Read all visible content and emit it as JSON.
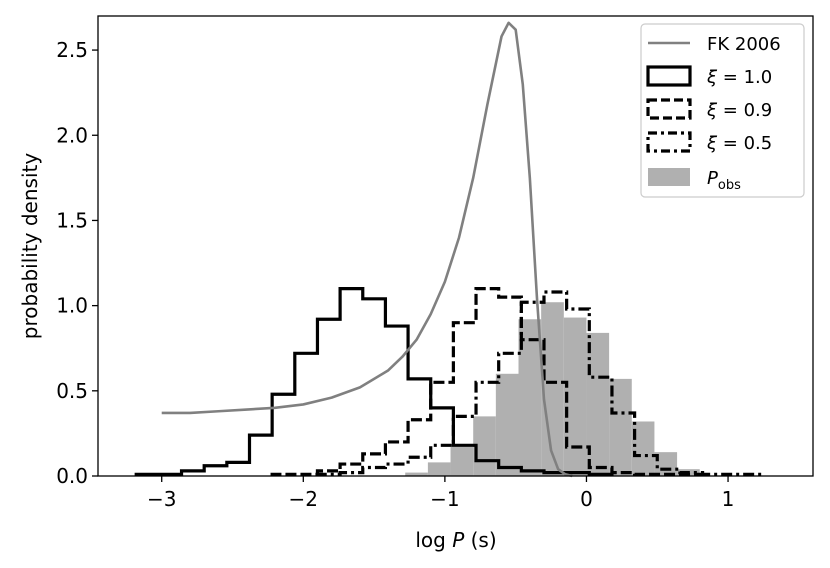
{
  "chart_data": {
    "type": "histogram",
    "title": "",
    "xlabel": "log P (s)",
    "ylabel": "probability density",
    "xlim": [
      -3.45,
      1.6
    ],
    "ylim": [
      0.0,
      2.7
    ],
    "xticks": [
      -3,
      -2,
      -1,
      0,
      1
    ],
    "xtick_labels": [
      "−3",
      "−2",
      "−1",
      "0",
      "1"
    ],
    "yticks": [
      0.0,
      0.5,
      1.0,
      1.5,
      2.0,
      2.5
    ],
    "ytick_labels": [
      "0.0",
      "0.5",
      "1.0",
      "1.5",
      "2.0",
      "2.5"
    ],
    "grid": false,
    "legend_position": "top-right",
    "legend": [
      {
        "label": "FK 2006"
      },
      {
        "label": "ξ = 1.0"
      },
      {
        "label": "ξ = 0.9"
      },
      {
        "label": "ξ = 0.5"
      },
      {
        "label": "P",
        "subscript": "obs"
      }
    ],
    "series": [
      {
        "name": "P_obs",
        "kind": "filled_histogram",
        "color": "#b0b0b0",
        "bin_edges": [
          -1.28,
          -1.12,
          -0.96,
          -0.8,
          -0.64,
          -0.48,
          -0.32,
          -0.16,
          0.0,
          0.16,
          0.32,
          0.48,
          0.64,
          0.8
        ],
        "values": [
          0.02,
          0.08,
          0.17,
          0.35,
          0.6,
          0.92,
          1.02,
          0.93,
          0.84,
          0.57,
          0.32,
          0.14,
          0.04
        ]
      },
      {
        "name": "ξ = 1.0",
        "kind": "step_histogram",
        "color": "#000000",
        "linestyle": "solid",
        "bin_edges": [
          -3.18,
          -2.86,
          -2.7,
          -2.54,
          -2.38,
          -2.22,
          -2.06,
          -1.9,
          -1.74,
          -1.58,
          -1.42,
          -1.26,
          -1.1,
          -0.94,
          -0.78,
          -0.62,
          -0.46,
          -0.3,
          -0.14,
          0.02,
          0.18
        ],
        "values": [
          0.01,
          0.03,
          0.06,
          0.08,
          0.24,
          0.48,
          0.72,
          0.92,
          1.1,
          1.04,
          0.88,
          0.57,
          0.4,
          0.18,
          0.09,
          0.05,
          0.03,
          0.02,
          0.02,
          0.01
        ]
      },
      {
        "name": "ξ = 0.9",
        "kind": "step_histogram",
        "color": "#000000",
        "linestyle": "dashed",
        "bin_edges": [
          -2.22,
          -1.9,
          -1.74,
          -1.58,
          -1.42,
          -1.26,
          -1.1,
          -0.94,
          -0.78,
          -0.62,
          -0.46,
          -0.3,
          -0.14,
          0.02,
          0.18,
          0.34,
          0.5,
          0.66,
          0.82
        ],
        "values": [
          0.01,
          0.03,
          0.07,
          0.13,
          0.2,
          0.33,
          0.55,
          0.9,
          1.1,
          1.05,
          0.8,
          0.55,
          0.17,
          0.05,
          0.02,
          0.01,
          0.01,
          0.01
        ]
      },
      {
        "name": "ξ = 0.5",
        "kind": "step_histogram",
        "color": "#000000",
        "linestyle": "dashdot",
        "bin_edges": [
          -1.9,
          -1.74,
          -1.58,
          -1.42,
          -1.26,
          -1.1,
          -0.94,
          -0.78,
          -0.62,
          -0.46,
          -0.3,
          -0.14,
          0.02,
          0.18,
          0.34,
          0.5,
          0.66,
          0.82,
          1.0,
          1.24
        ],
        "values": [
          0.01,
          0.02,
          0.05,
          0.07,
          0.11,
          0.18,
          0.35,
          0.55,
          0.72,
          1.02,
          1.08,
          0.98,
          0.58,
          0.37,
          0.12,
          0.04,
          0.02,
          0.01,
          0.01
        ]
      },
      {
        "name": "FK 2006",
        "kind": "line",
        "color": "#808080",
        "x": [
          -3.0,
          -2.8,
          -2.6,
          -2.4,
          -2.2,
          -2.0,
          -1.8,
          -1.6,
          -1.4,
          -1.3,
          -1.2,
          -1.1,
          -1.0,
          -0.9,
          -0.8,
          -0.7,
          -0.6,
          -0.55,
          -0.5,
          -0.45,
          -0.4,
          -0.35,
          -0.3,
          -0.25,
          -0.2,
          -0.15,
          -0.1
        ],
        "y": [
          0.37,
          0.37,
          0.38,
          0.39,
          0.4,
          0.42,
          0.46,
          0.52,
          0.62,
          0.7,
          0.8,
          0.95,
          1.14,
          1.4,
          1.75,
          2.18,
          2.58,
          2.66,
          2.62,
          2.3,
          1.75,
          1.05,
          0.45,
          0.15,
          0.04,
          0.01,
          0.0
        ]
      }
    ]
  }
}
